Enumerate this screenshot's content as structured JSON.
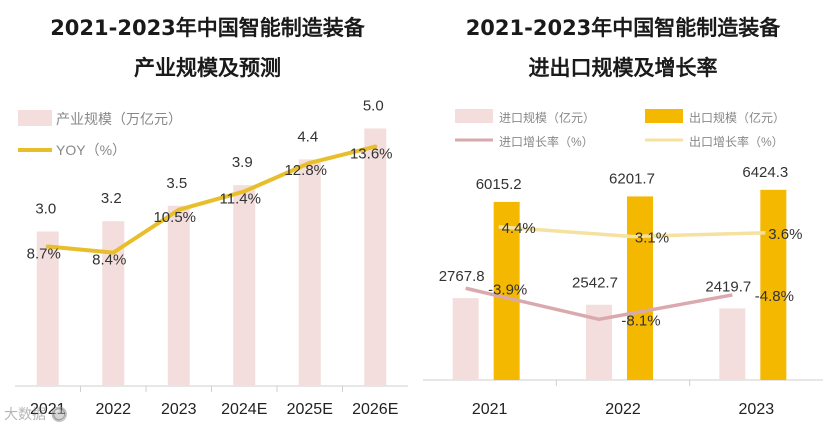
{
  "chart_data": [
    {
      "type": "bar",
      "title": "2021-2023年中国智能制造装备",
      "subtitle": "产业规模及预测",
      "categories": [
        "2021",
        "2022",
        "2023",
        "2024E",
        "2025E",
        "2026E"
      ],
      "series": [
        {
          "name": "产业规模（万亿元）",
          "type": "bar",
          "values": [
            3.0,
            3.2,
            3.5,
            3.9,
            4.4,
            5.0
          ],
          "labels": [
            "3.0",
            "3.2",
            "3.5",
            "3.9",
            "4.4",
            "5.0"
          ]
        },
        {
          "name": "YOY（%）",
          "type": "line",
          "values": [
            8.7,
            8.4,
            10.5,
            11.4,
            12.8,
            13.6
          ],
          "labels": [
            "8.7%",
            "8.4%",
            "10.5%",
            "11.4%",
            "12.8%",
            "13.6%"
          ]
        }
      ],
      "colors": {
        "bar": "#f3dedd",
        "line": "#e8bf2a"
      }
    },
    {
      "type": "bar",
      "title": "2021-2023年中国智能制造装备",
      "subtitle": "进出口规模及增长率",
      "categories": [
        "2021",
        "2022",
        "2023"
      ],
      "series": [
        {
          "name": "进口规模（亿元）",
          "type": "bar",
          "values": [
            2767.8,
            2542.7,
            2419.7
          ],
          "labels": [
            "2767.8",
            "2542.7",
            "2419.7"
          ]
        },
        {
          "name": "出口规模（亿元）",
          "type": "bar",
          "values": [
            6015.2,
            6201.7,
            6424.3
          ],
          "labels": [
            "6015.2",
            "6201.7",
            "6424.3"
          ]
        },
        {
          "name": "进口增长率（%）",
          "type": "line",
          "values": [
            -3.9,
            -8.1,
            -4.8
          ],
          "labels": [
            "-3.9%",
            "-8.1%",
            "-4.8%"
          ]
        },
        {
          "name": "出口增长率（%）",
          "type": "line",
          "values": [
            4.4,
            3.1,
            3.6
          ],
          "labels": [
            "4.4%",
            "3.1%",
            "3.6%"
          ]
        }
      ],
      "colors": {
        "import_bar": "#f3dedd",
        "export_bar": "#f5b800",
        "import_line": "#d9a9ad",
        "export_line": "#f5e1a0"
      }
    }
  ],
  "watermark": "大数据 🔘"
}
